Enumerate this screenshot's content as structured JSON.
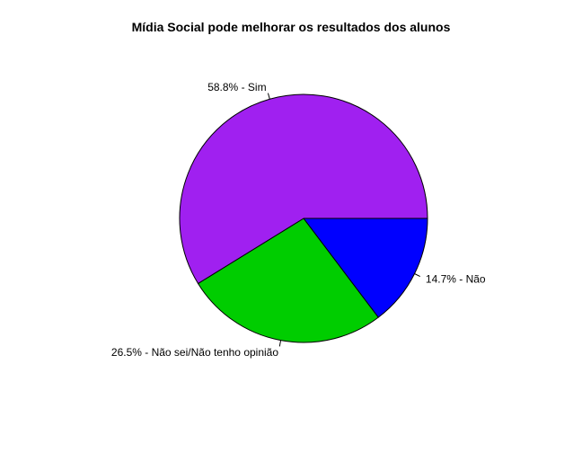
{
  "chart_data": {
    "type": "pie",
    "title": "Mídia Social pode melhorar os resultados dos alunos",
    "slices": [
      {
        "label": "14.7% - Não",
        "value": 14.7,
        "color": "#0000FF"
      },
      {
        "label": "26.5% - Não sei/Não tenho opinião",
        "value": 26.5,
        "color": "#00CD00"
      },
      {
        "label": "58.8% - Sim",
        "value": 58.8,
        "color": "#A020F0"
      }
    ],
    "start_angle_deg": 0,
    "direction": "clockwise",
    "legend": "none"
  }
}
